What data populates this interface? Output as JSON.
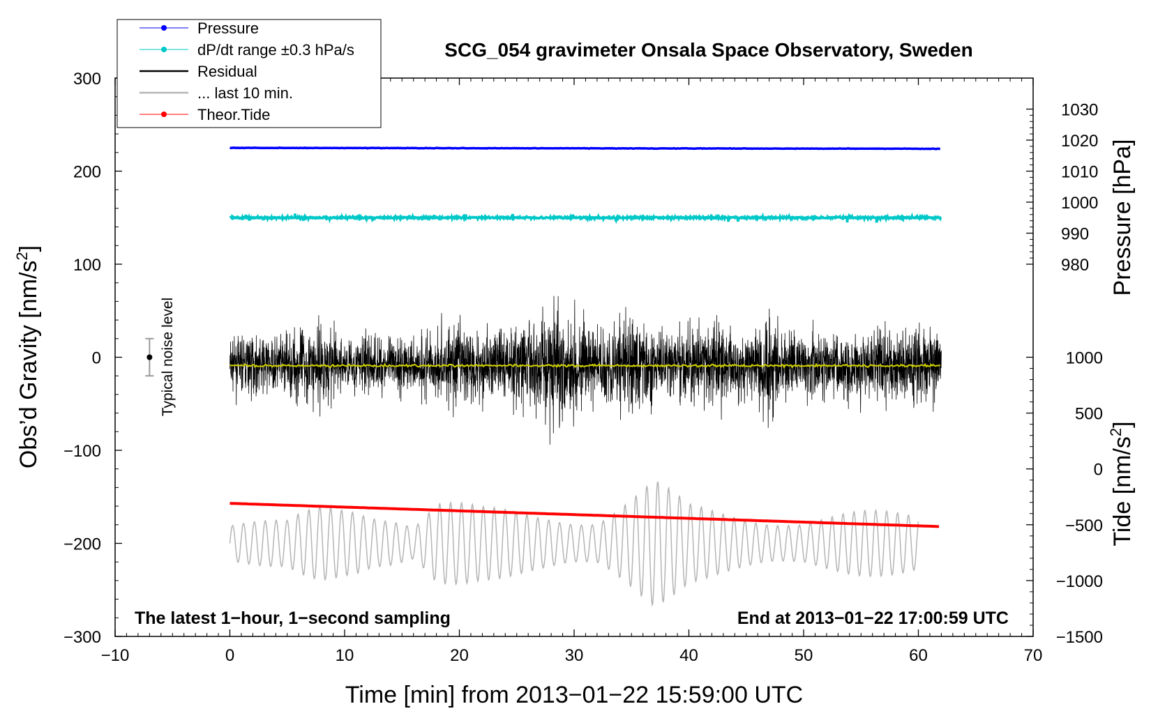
{
  "chart_data": {
    "type": "line",
    "title": "SCG_054 gravimeter Onsala Space Observatory, Sweden",
    "xlabel": "Time [min] from 2013−01−22 15:59:00 UTC",
    "ylabel_left": "Obs’d Gravity [nm/s",
    "ylabel_left_sup": "2",
    "ylabel_left_close": "]",
    "ylabel_right_pressure": "Pressure [hPa]",
    "ylabel_right_tide": "Tide [nm/s",
    "ylabel_right_tide_sup": "2",
    "ylabel_right_tide_close": "]",
    "note_left": "The latest 1−hour, 1−second sampling",
    "note_right": "End at 2013−01−22 17:00:59 UTC",
    "noise_label": "Typical noise level",
    "xlim": [
      -10,
      70
    ],
    "ylim_left": [
      -300,
      300
    ],
    "ylim_pressure": [
      980,
      1030
    ],
    "ylim_tide": [
      -1500,
      1000
    ],
    "x_ticks": [
      {
        "value": -10,
        "label": "−10"
      },
      {
        "value": 0,
        "label": "0"
      },
      {
        "value": 10,
        "label": "10"
      },
      {
        "value": 20,
        "label": "20"
      },
      {
        "value": 30,
        "label": "30"
      },
      {
        "value": 40,
        "label": "40"
      },
      {
        "value": 50,
        "label": "50"
      },
      {
        "value": 60,
        "label": "60"
      },
      {
        "value": 70,
        "label": "70"
      }
    ],
    "y_left_ticks": [
      {
        "value": 300,
        "label": "300"
      },
      {
        "value": 200,
        "label": "200"
      },
      {
        "value": 100,
        "label": "100"
      },
      {
        "value": 0,
        "label": "0"
      },
      {
        "value": -100,
        "label": "−100"
      },
      {
        "value": -200,
        "label": "−200"
      },
      {
        "value": -300,
        "label": "−300"
      }
    ],
    "y_pressure_ticks": [
      {
        "value": 1030,
        "label": "1030"
      },
      {
        "value": 1020,
        "label": "1020"
      },
      {
        "value": 1010,
        "label": "1010"
      },
      {
        "value": 1000,
        "label": "1000"
      },
      {
        "value": 990,
        "label": "990"
      },
      {
        "value": 980,
        "label": "980"
      }
    ],
    "y_tide_ticks": [
      {
        "value": 1000,
        "label": "1000"
      },
      {
        "value": 500,
        "label": "500"
      },
      {
        "value": 0,
        "label": "0"
      },
      {
        "value": -500,
        "label": "−500"
      },
      {
        "value": -1000,
        "label": "−1000"
      },
      {
        "value": -1500,
        "label": "−1500"
      }
    ],
    "legend": [
      {
        "label": "Pressure",
        "color": "#0000ff",
        "marker": true
      },
      {
        "label": "dP/dt range ±0.3 hPa/s",
        "color": "#00c8c8",
        "marker": true
      },
      {
        "label": "Residual",
        "color": "#000000",
        "marker": false
      },
      {
        "label": "... last 10 min.",
        "color": "#b4b4b4",
        "marker": false
      },
      {
        "label": "Theor.Tide",
        "color": "#ff0000",
        "marker": true
      }
    ],
    "series": [
      {
        "name": "Pressure",
        "axis": "left",
        "color": "#0000ff",
        "x_range": [
          0,
          62
        ],
        "y_start": 225,
        "y_end": 224,
        "noise": 0.6
      },
      {
        "name": "dP/dt range ±0.3 hPa/s",
        "axis": "left",
        "color": "#00c8c8",
        "x_range": [
          0,
          62
        ],
        "y_center": 150,
        "noise": 1.5
      },
      {
        "name": "Residual",
        "axis": "left",
        "color": "#000000",
        "x_range": [
          0,
          62
        ],
        "y_center": -8,
        "envelope": [
          [
            0,
            35
          ],
          [
            2,
            55
          ],
          [
            4,
            45
          ],
          [
            8,
            75
          ],
          [
            10,
            40
          ],
          [
            12,
            55
          ],
          [
            15,
            45
          ],
          [
            18,
            60
          ],
          [
            20,
            80
          ],
          [
            22,
            55
          ],
          [
            25,
            70
          ],
          [
            27,
            90
          ],
          [
            28,
            100
          ],
          [
            30,
            80
          ],
          [
            32,
            60
          ],
          [
            35,
            85
          ],
          [
            38,
            55
          ],
          [
            40,
            60
          ],
          [
            43,
            70
          ],
          [
            45,
            50
          ],
          [
            47,
            110
          ],
          [
            48,
            55
          ],
          [
            50,
            60
          ],
          [
            53,
            55
          ],
          [
            55,
            65
          ],
          [
            58,
            60
          ],
          [
            60,
            70
          ],
          [
            62,
            55
          ]
        ]
      },
      {
        "name": "Residual mean",
        "axis": "left",
        "color": "#d2d200",
        "x_range": [
          0,
          62
        ],
        "y_center": -9,
        "noise": 1.5
      },
      {
        "name": "... last 10 min.",
        "axis": "left",
        "color": "#b4b4b4",
        "x_range": [
          0,
          60
        ],
        "y_center": -200,
        "amp": 35,
        "period_min": 0.95,
        "envelope": [
          [
            0,
            25
          ],
          [
            5,
            25
          ],
          [
            8,
            50
          ],
          [
            11,
            60
          ],
          [
            14,
            45
          ],
          [
            16,
            25
          ],
          [
            18,
            50
          ],
          [
            22,
            40
          ],
          [
            28,
            45
          ],
          [
            32,
            35
          ],
          [
            37,
            70
          ],
          [
            40,
            45
          ],
          [
            45,
            45
          ],
          [
            50,
            30
          ],
          [
            55,
            35
          ],
          [
            60,
            40
          ]
        ]
      },
      {
        "name": "Theor.Tide",
        "axis": "left",
        "color": "#ff0000",
        "x_range": [
          0,
          62
        ],
        "y_start": -157,
        "y_end": -182
      }
    ],
    "noise_bar": {
      "x": -7,
      "y": 0,
      "err": 20
    }
  }
}
